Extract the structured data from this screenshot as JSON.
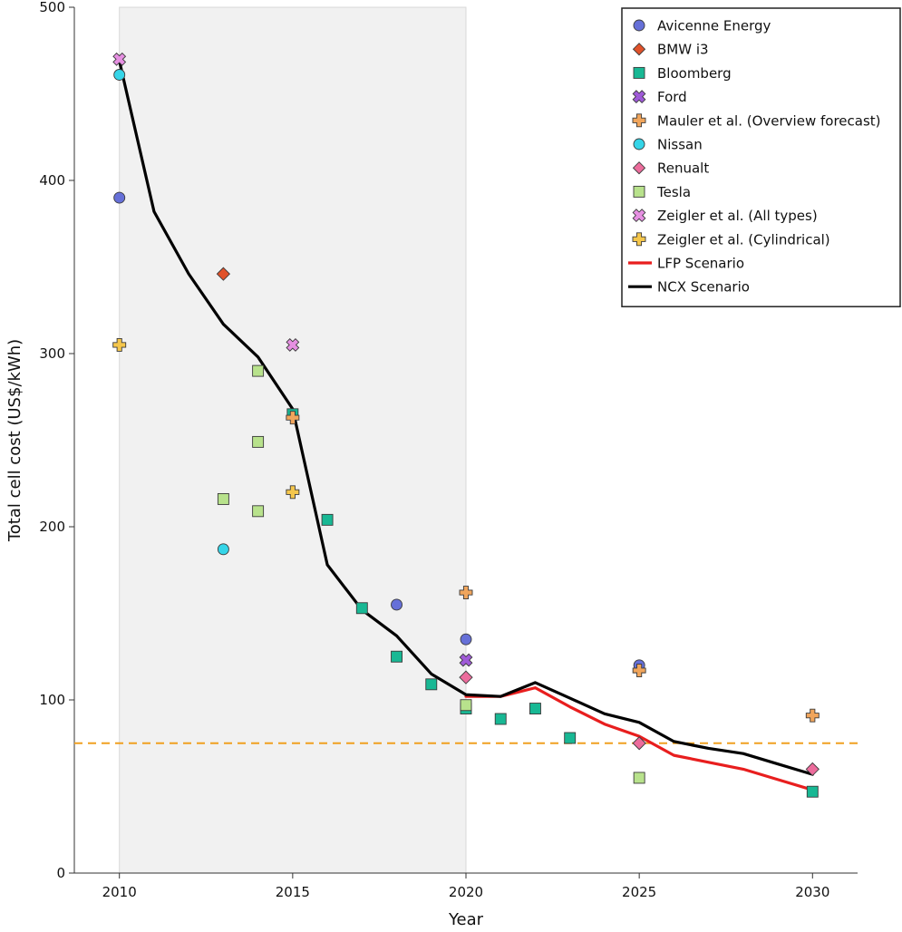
{
  "chart_data": {
    "type": "scatter",
    "xlabel": "Year",
    "ylabel": "Total cell cost (US$/kWh)",
    "xlim": [
      2008.7,
      2031.3
    ],
    "ylim": [
      0,
      500
    ],
    "x_ticks": [
      2010,
      2015,
      2020,
      2025,
      2030
    ],
    "y_ticks": [
      0,
      100,
      200,
      300,
      400,
      500
    ],
    "grid": false,
    "legend_position": "top-right",
    "shaded_region": {
      "x_start": 2010,
      "x_end": 2020,
      "color": "#f1f1f1"
    },
    "reference_line": {
      "y": 75,
      "color": "#f0a020",
      "style": "dashed"
    },
    "series": [
      {
        "name": "Avicenne Energy",
        "marker": "circle",
        "color": "#6670d8",
        "points": [
          [
            2010,
            390
          ],
          [
            2018,
            155
          ],
          [
            2020,
            135
          ],
          [
            2025,
            120
          ]
        ]
      },
      {
        "name": "BMW i3",
        "marker": "diamond",
        "color": "#e0522a",
        "points": [
          [
            2013,
            346
          ]
        ]
      },
      {
        "name": "Bloomberg",
        "marker": "square",
        "color": "#18b894",
        "points": [
          [
            2015,
            265
          ],
          [
            2016,
            204
          ],
          [
            2017,
            153
          ],
          [
            2018,
            125
          ],
          [
            2019,
            109
          ],
          [
            2020,
            95
          ],
          [
            2021,
            89
          ],
          [
            2022,
            95
          ],
          [
            2023,
            78
          ],
          [
            2030,
            47
          ]
        ]
      },
      {
        "name": "Ford",
        "marker": "x",
        "color": "#9f5ad8",
        "points": [
          [
            2020,
            123
          ]
        ]
      },
      {
        "name": "Mauler et al. (Overview forecast)",
        "marker": "plus",
        "color": "#f0a55c",
        "points": [
          [
            2015,
            263
          ],
          [
            2020,
            162
          ],
          [
            2025,
            117
          ],
          [
            2030,
            91
          ]
        ]
      },
      {
        "name": "Nissan",
        "marker": "circle",
        "color": "#35d5e8",
        "points": [
          [
            2010,
            461
          ],
          [
            2013,
            187
          ]
        ]
      },
      {
        "name": "Renualt",
        "marker": "diamond",
        "color": "#ec6c9c",
        "points": [
          [
            2020,
            113
          ],
          [
            2025,
            75
          ],
          [
            2030,
            60
          ]
        ]
      },
      {
        "name": "Tesla",
        "marker": "square",
        "color": "#b8e28c",
        "points": [
          [
            2013,
            216
          ],
          [
            2014,
            209
          ],
          [
            2014,
            249
          ],
          [
            2014,
            290
          ],
          [
            2020,
            97
          ],
          [
            2025,
            55
          ]
        ]
      },
      {
        "name": "Zeigler et al. (All types)",
        "marker": "x",
        "color": "#e690e2",
        "points": [
          [
            2010,
            470
          ],
          [
            2015,
            305
          ]
        ]
      },
      {
        "name": "Zeigler et al. (Cylindrical)",
        "marker": "plus",
        "color": "#f4c64c",
        "points": [
          [
            2010,
            305
          ],
          [
            2015,
            220
          ]
        ]
      },
      {
        "name": "LFP Scenario",
        "marker": "line",
        "color": "#e81e1e",
        "points": [
          [
            2020,
            102
          ],
          [
            2021,
            102
          ],
          [
            2022,
            107
          ],
          [
            2023,
            96
          ],
          [
            2024,
            86
          ],
          [
            2025,
            79
          ],
          [
            2026,
            68
          ],
          [
            2027,
            64
          ],
          [
            2028,
            60
          ],
          [
            2029,
            54
          ],
          [
            2030,
            48
          ]
        ]
      },
      {
        "name": "NCX Scenario",
        "marker": "line",
        "color": "#000000",
        "points": [
          [
            2010,
            469
          ],
          [
            2011,
            382
          ],
          [
            2012,
            346
          ],
          [
            2013,
            317
          ],
          [
            2014,
            298
          ],
          [
            2015,
            268
          ],
          [
            2016,
            178
          ],
          [
            2017,
            152
          ],
          [
            2018,
            137
          ],
          [
            2019,
            115
          ],
          [
            2020,
            103
          ],
          [
            2021,
            102
          ],
          [
            2022,
            110
          ],
          [
            2023,
            101
          ],
          [
            2024,
            92
          ],
          [
            2025,
            87
          ],
          [
            2026,
            76
          ],
          [
            2027,
            72
          ],
          [
            2028,
            69
          ],
          [
            2029,
            63
          ],
          [
            2030,
            57
          ]
        ]
      }
    ]
  }
}
